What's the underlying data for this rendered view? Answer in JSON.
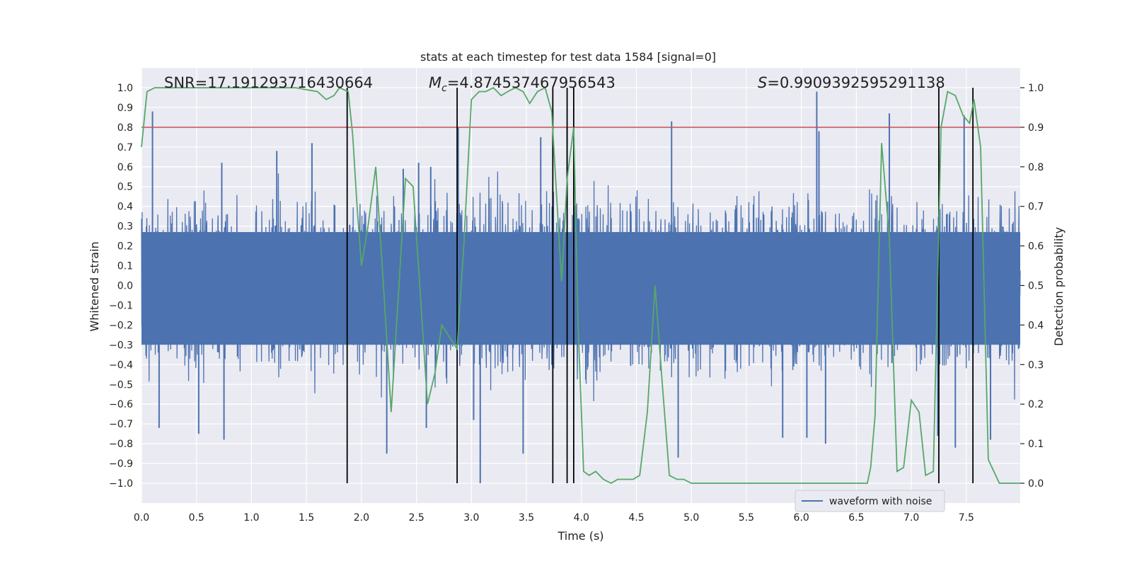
{
  "chart_data": {
    "type": "line",
    "title": "stats at each timestep for test data 1584 [signal=0]",
    "xlabel": "Time (s)",
    "ylabel": "Whitened strain",
    "y2label": "Detection probability",
    "xlim": [
      0.0,
      7.99
    ],
    "ylim": [
      -1.1,
      1.1
    ],
    "y2lim": [
      -0.05,
      1.05
    ],
    "xticks": [
      0.0,
      0.5,
      1.0,
      1.5,
      2.0,
      2.5,
      3.0,
      3.5,
      4.0,
      4.5,
      5.0,
      5.5,
      6.0,
      6.5,
      7.0,
      7.5
    ],
    "xtick_labels": [
      "0.0",
      "0.5",
      "1.0",
      "1.5",
      "2.0",
      "2.5",
      "3.0",
      "3.5",
      "4.0",
      "4.5",
      "5.0",
      "5.5",
      "6.0",
      "6.5",
      "7.0",
      "7.5"
    ],
    "yticks": [
      1.0,
      0.9,
      0.8,
      0.7,
      0.6,
      0.5,
      0.4,
      0.3,
      0.2,
      0.1,
      0.0,
      -0.1,
      -0.2,
      -0.3,
      -0.4,
      -0.5,
      -0.6,
      -0.7,
      -0.8,
      -0.9,
      -1.0
    ],
    "ytick_labels": [
      "1.0",
      "0.9",
      "0.8",
      "0.7",
      "0.6",
      "0.5",
      "0.4",
      "0.3",
      "0.2",
      "0.1",
      "0.0",
      "−0.1",
      "−0.2",
      "−0.3",
      "−0.4",
      "−0.5",
      "−0.6",
      "−0.7",
      "−0.8",
      "−0.9",
      "−1.0"
    ],
    "y2ticks": [
      1.0,
      0.9,
      0.8,
      0.7,
      0.6,
      0.5,
      0.4,
      0.3,
      0.2,
      0.1,
      0.0
    ],
    "y2tick_labels": [
      "1.0",
      "0.9",
      "0.8",
      "0.7",
      "0.6",
      "0.5",
      "0.4",
      "0.3",
      "0.2",
      "0.1",
      "0.0"
    ],
    "annotations": {
      "snr": "SNR=17.191293716430664",
      "mc_symbol": "M",
      "mc_sub": "c",
      "mc_value": "=4.874537467956543",
      "s_symbol": "S",
      "s_value": "=0.9909392595291138"
    },
    "legend": {
      "label": "waveform with noise",
      "position": "lower-right"
    },
    "threshold": {
      "y2": 0.9,
      "color": "#c44e52"
    },
    "vertical_markers": [
      1.87,
      2.87,
      3.74,
      3.87,
      3.93,
      7.25,
      7.56
    ],
    "series": [
      {
        "name": "waveform with noise",
        "axis": "left",
        "color": "#4c72b0",
        "description": "whitened noise samples, mostly within ±0.5 with spikes up to about ±1.0",
        "envelope": {
          "typical": 0.42,
          "max_upper": 0.98,
          "min_lower": -1.0
        },
        "spikes": [
          {
            "t": 0.1,
            "v": 0.88
          },
          {
            "t": 0.73,
            "v": 0.62
          },
          {
            "t": 1.23,
            "v": 0.68
          },
          {
            "t": 1.55,
            "v": 0.72
          },
          {
            "t": 2.38,
            "v": 0.59
          },
          {
            "t": 2.52,
            "v": 0.62
          },
          {
            "t": 2.63,
            "v": 0.6
          },
          {
            "t": 2.88,
            "v": 0.8
          },
          {
            "t": 3.63,
            "v": 0.75
          },
          {
            "t": 3.87,
            "v": 0.8
          },
          {
            "t": 4.82,
            "v": 0.83
          },
          {
            "t": 6.14,
            "v": 0.98
          },
          {
            "t": 6.16,
            "v": 0.78
          },
          {
            "t": 6.8,
            "v": 0.87
          },
          {
            "t": 7.48,
            "v": 0.86
          },
          {
            "t": 0.16,
            "v": -0.72
          },
          {
            "t": 0.75,
            "v": -0.78
          },
          {
            "t": 0.52,
            "v": -0.75
          },
          {
            "t": 2.23,
            "v": -0.85
          },
          {
            "t": 2.59,
            "v": -0.72
          },
          {
            "t": 3.02,
            "v": -0.68
          },
          {
            "t": 3.08,
            "v": -1.0
          },
          {
            "t": 3.47,
            "v": -0.85
          },
          {
            "t": 4.88,
            "v": -0.87
          },
          {
            "t": 5.83,
            "v": -0.77
          },
          {
            "t": 6.05,
            "v": -0.77
          },
          {
            "t": 6.22,
            "v": -0.8
          },
          {
            "t": 7.24,
            "v": -0.76
          },
          {
            "t": 7.4,
            "v": -0.82
          },
          {
            "t": 7.72,
            "v": -0.78
          }
        ]
      },
      {
        "name": "Detection probability",
        "axis": "right",
        "color": "#55a868",
        "x": [
          0.0,
          0.05,
          0.12,
          0.2,
          1.4,
          1.6,
          1.68,
          1.75,
          1.8,
          1.88,
          1.92,
          1.96,
          2.0,
          2.06,
          2.13,
          2.2,
          2.27,
          2.33,
          2.4,
          2.47,
          2.53,
          2.6,
          2.67,
          2.73,
          2.8,
          2.87,
          2.93,
          3.0,
          3.07,
          3.13,
          3.2,
          3.27,
          3.33,
          3.4,
          3.47,
          3.53,
          3.6,
          3.67,
          3.73,
          3.78,
          3.82,
          3.87,
          3.93,
          3.97,
          4.02,
          4.07,
          4.13,
          4.2,
          4.27,
          4.33,
          4.4,
          4.47,
          4.53,
          4.6,
          4.67,
          4.73,
          4.8,
          4.87,
          4.93,
          5.0,
          5.07,
          5.13,
          5.2,
          5.3,
          5.5,
          5.8,
          6.07,
          6.2,
          6.4,
          6.6,
          6.63,
          6.67,
          6.73,
          6.8,
          6.87,
          6.93,
          7.0,
          7.07,
          7.13,
          7.2,
          7.27,
          7.33,
          7.4,
          7.47,
          7.53,
          7.57,
          7.63,
          7.7,
          7.8,
          7.99
        ],
        "values": [
          0.85,
          0.99,
          1.0,
          1.0,
          1.0,
          0.99,
          0.97,
          0.98,
          1.0,
          0.99,
          0.88,
          0.7,
          0.55,
          0.65,
          0.8,
          0.5,
          0.18,
          0.45,
          0.77,
          0.75,
          0.5,
          0.2,
          0.28,
          0.4,
          0.37,
          0.34,
          0.6,
          0.97,
          0.99,
          0.99,
          1.0,
          0.98,
          0.99,
          1.0,
          0.99,
          0.96,
          0.99,
          1.0,
          0.94,
          0.7,
          0.51,
          0.77,
          0.9,
          0.4,
          0.03,
          0.02,
          0.03,
          0.01,
          0.0,
          0.01,
          0.01,
          0.01,
          0.02,
          0.18,
          0.5,
          0.27,
          0.02,
          0.01,
          0.01,
          0.0,
          0.0,
          0.0,
          0.0,
          0.0,
          0.0,
          0.0,
          0.0,
          0.0,
          0.0,
          0.0,
          0.04,
          0.17,
          0.86,
          0.62,
          0.03,
          0.04,
          0.21,
          0.18,
          0.02,
          0.03,
          0.9,
          0.99,
          0.98,
          0.93,
          0.91,
          0.97,
          0.85,
          0.06,
          0.0,
          0.0
        ]
      }
    ]
  }
}
